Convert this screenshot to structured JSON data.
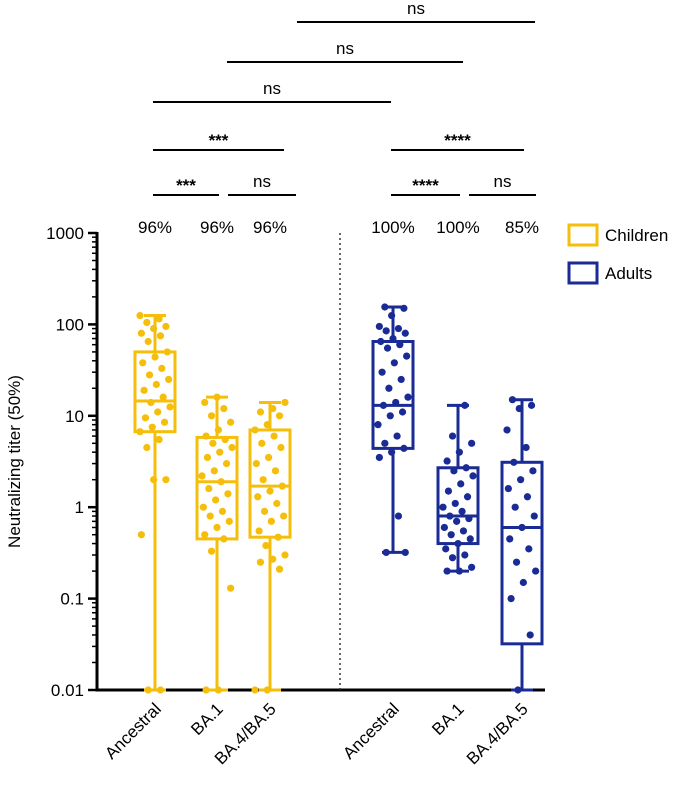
{
  "chart_data": {
    "type": "box",
    "ylabel": "Neutralizing titer (50%)",
    "yscale": "log",
    "ylim": [
      0.01,
      1000
    ],
    "yticks": [
      {
        "value": 1000,
        "label": "1000"
      },
      {
        "value": 100,
        "label": "100"
      },
      {
        "value": 10,
        "label": "10"
      },
      {
        "value": 1,
        "label": "1"
      },
      {
        "value": 0.1,
        "label": "0.1"
      },
      {
        "value": 0.01,
        "label": "0.01"
      }
    ],
    "legend": [
      {
        "name": "Children",
        "color": "#F5BE0B"
      },
      {
        "name": "Adults",
        "color": "#1A2B96"
      }
    ],
    "groups": [
      {
        "name": "Children",
        "color": "#F5BE0B",
        "boxes": [
          {
            "category": "Ancestral",
            "percent": "96%",
            "min": 0.01,
            "q1": 6.7,
            "median": 14.5,
            "q3": 50,
            "max": 125,
            "points": [
              125,
              115,
              105,
              95,
              90,
              80,
              75,
              65,
              50,
              44,
              38,
              33,
              28,
              25,
              22,
              19,
              16,
              14,
              12.5,
              11,
              9.5,
              8.5,
              7.5,
              6.7,
              5.5,
              4.5,
              2,
              2,
              0.5,
              0.01,
              0.01
            ]
          },
          {
            "category": "BA.1",
            "percent": "96%",
            "min": 0.01,
            "q1": 0.45,
            "median": 1.9,
            "q3": 5.8,
            "max": 16,
            "points": [
              16,
              14,
              12,
              10,
              8.5,
              7,
              6,
              5.5,
              5,
              4.5,
              4,
              3.5,
              3,
              2.5,
              2.2,
              1.9,
              1.6,
              1.4,
              1.2,
              1,
              0.9,
              0.8,
              0.7,
              0.6,
              0.5,
              0.45,
              0.33,
              0.13,
              0.01,
              0.01
            ]
          },
          {
            "category": "BA.4/BA.5",
            "percent": "96%",
            "min": 0.01,
            "q1": 0.47,
            "median": 1.7,
            "q3": 7,
            "max": 14,
            "points": [
              14,
              12,
              11,
              10,
              8,
              7,
              6,
              5,
              4.5,
              3.5,
              3,
              2.5,
              2,
              1.7,
              1.5,
              1.3,
              1.1,
              0.9,
              0.8,
              0.7,
              0.55,
              0.47,
              0.38,
              0.3,
              0.27,
              0.25,
              0.21,
              0.01,
              0.01
            ]
          }
        ]
      },
      {
        "name": "Adults",
        "color": "#1A2B96",
        "boxes": [
          {
            "category": "Ancestral",
            "percent": "100%",
            "min": 0.32,
            "q1": 4.4,
            "median": 13,
            "q3": 65,
            "max": 155,
            "points": [
              155,
              150,
              125,
              95,
              90,
              85,
              80,
              70,
              65,
              60,
              55,
              45,
              38,
              30,
              25,
              20,
              16,
              14,
              13,
              11,
              10,
              8,
              6,
              5,
              4.4,
              4,
              3.5,
              0.8,
              0.32,
              0.32
            ]
          },
          {
            "category": "BA.1",
            "percent": "100%",
            "min": 0.2,
            "q1": 0.4,
            "median": 0.8,
            "q3": 2.7,
            "max": 13,
            "points": [
              13,
              6,
              5,
              4,
              3.2,
              2.7,
              2.5,
              2.2,
              1.8,
              1.5,
              1.3,
              1.1,
              1,
              0.9,
              0.8,
              0.75,
              0.7,
              0.6,
              0.55,
              0.5,
              0.45,
              0.4,
              0.35,
              0.3,
              0.28,
              0.22,
              0.2,
              0.2
            ]
          },
          {
            "category": "BA.4/BA.5",
            "percent": "85%",
            "min": 0.01,
            "q1": 0.032,
            "median": 0.6,
            "q3": 3.1,
            "max": 15,
            "points": [
              15,
              13,
              12,
              7,
              4.5,
              3.1,
              2.5,
              2,
              1.6,
              1.3,
              1,
              0.8,
              0.6,
              0.45,
              0.35,
              0.25,
              0.2,
              0.15,
              0.1,
              0.04,
              0.01
            ]
          }
        ]
      }
    ],
    "significance": [
      {
        "from": "Children.Ancestral",
        "to": "Children.BA.1",
        "label": "***"
      },
      {
        "from": "Children.BA.1",
        "to": "Children.BA.4/BA.5",
        "label": "ns"
      },
      {
        "from": "Children.Ancestral",
        "to": "Children.BA.4/BA.5",
        "label": "***"
      },
      {
        "from": "Adults.Ancestral",
        "to": "Adults.BA.1",
        "label": "****"
      },
      {
        "from": "Adults.BA.1",
        "to": "Adults.BA.4/BA.5",
        "label": "ns"
      },
      {
        "from": "Adults.Ancestral",
        "to": "Adults.BA.4/BA.5",
        "label": "****"
      },
      {
        "from": "Children.Ancestral",
        "to": "Adults.Ancestral",
        "label": "ns"
      },
      {
        "from": "Children.BA.1",
        "to": "Adults.BA.1",
        "label": "ns"
      },
      {
        "from": "Children.BA.4/BA.5",
        "to": "Adults.BA.4/BA.5",
        "label": "ns"
      }
    ]
  }
}
